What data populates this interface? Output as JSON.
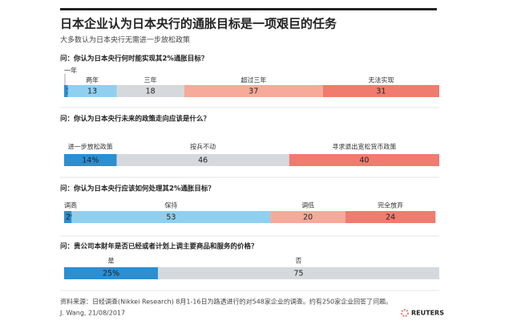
{
  "header": {
    "title": "日本企业认为日本央行的通胀目标是一项艰巨的任务",
    "subtitle": "大多数认为日本央行无需进一步放松政策"
  },
  "chart_data": [
    {
      "type": "bar",
      "title": "问：你认为日本央行何时能实现其2%通胀目标？",
      "xlim": [
        0,
        100
      ],
      "series": [
        {
          "name": "一年",
          "color": "#2b8fd1",
          "values": [
            1
          ],
          "value_labels": [
            "1%"
          ]
        },
        {
          "name": "两年",
          "color": "#8fd0f0",
          "values": [
            13
          ]
        },
        {
          "name": "三年",
          "color": "#d5d9dd",
          "values": [
            18
          ]
        },
        {
          "name": "超过三年",
          "color": "#f5aa9a",
          "values": [
            37
          ]
        },
        {
          "name": "无法实现",
          "color": "#f07b6f",
          "values": [
            31
          ]
        }
      ]
    },
    {
      "type": "bar",
      "title": "问：你认为日本央行未来的政策走向应该是什么？",
      "xlim": [
        0,
        100
      ],
      "series": [
        {
          "name": "进一步放松政策",
          "color": "#2b8fd1",
          "values": [
            14
          ],
          "value_labels": [
            "14%"
          ]
        },
        {
          "name": "按兵不动",
          "color": "#d5d9dd",
          "values": [
            46
          ]
        },
        {
          "name": "寻求退出宽松货币政策",
          "color": "#f07b6f",
          "values": [
            40
          ]
        }
      ]
    },
    {
      "type": "bar",
      "title": "问：你认为日本央行应该如何处理其2%通胀目标？",
      "xlim": [
        0,
        100
      ],
      "series": [
        {
          "name": "调高",
          "color": "#2b8fd1",
          "values": [
            2
          ],
          "value_labels": [
            "2%"
          ]
        },
        {
          "name": "保持",
          "color": "#8fd0f0",
          "values": [
            53
          ]
        },
        {
          "name": "调低",
          "color": "#f5aa9a",
          "values": [
            20
          ]
        },
        {
          "name": "完全放弃",
          "color": "#f07b6f",
          "values": [
            24
          ]
        }
      ]
    },
    {
      "type": "bar",
      "title": "问：贵公司本财年是否已经或者计划上调主要商品和服务的价格？",
      "xlim": [
        0,
        100
      ],
      "series": [
        {
          "name": "是",
          "color": "#2b8fd1",
          "values": [
            25
          ],
          "value_labels": [
            "25%"
          ]
        },
        {
          "name": "否",
          "color": "#d5d9dd",
          "values": [
            75
          ]
        }
      ]
    }
  ],
  "footer": {
    "source": "资料来源：日经调查(Nikkei Research) 8月1-16日为路透进行的对548家企业的调查。约有250家企业回答了问题。",
    "byline": "J. Wang, 21/08/2017",
    "logo": "REUTERS"
  }
}
